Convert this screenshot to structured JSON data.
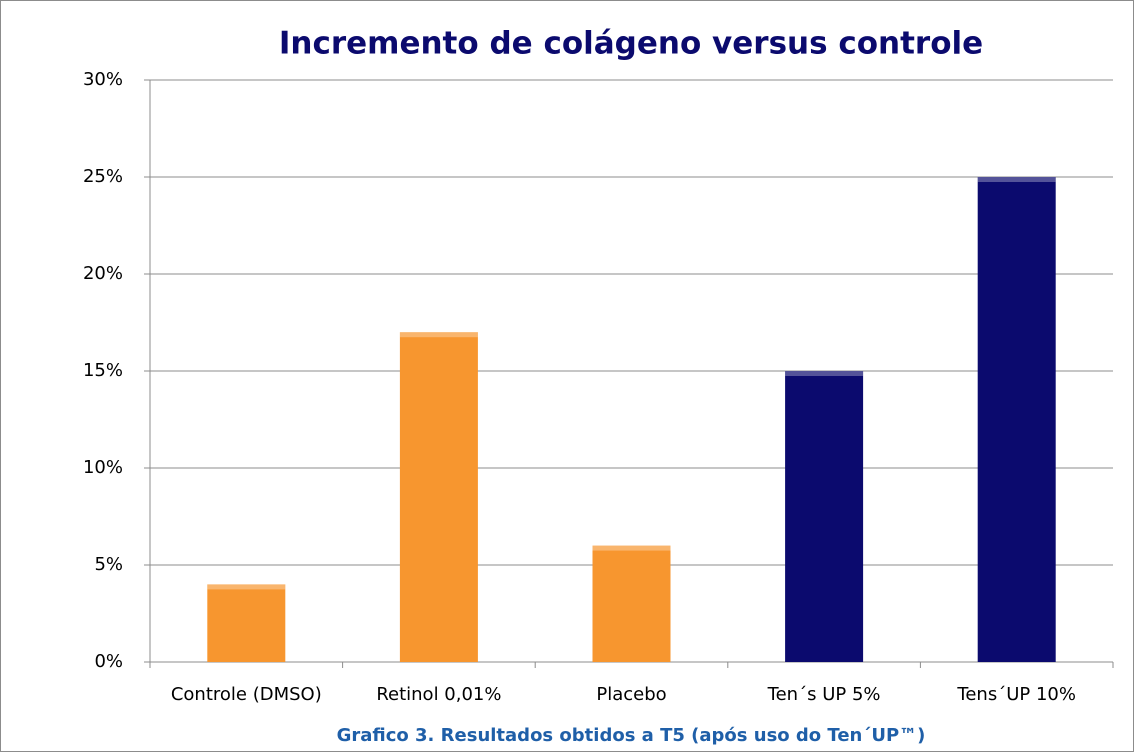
{
  "chart_data": {
    "type": "bar",
    "title": "Incremento de colágeno versus controle",
    "caption": "Grafico 3. Resultados obtidos a T5 (após uso do Ten´UP™)",
    "categories": [
      "Controle (DMSO)",
      "Retinol 0,01%",
      "Placebo",
      "Ten´s UP 5%",
      "Tens´UP 10%"
    ],
    "values": [
      4,
      17,
      6,
      15,
      25
    ],
    "colors": [
      "#f7962f",
      "#f7962f",
      "#f7962f",
      "#0b0a6e",
      "#0b0a6e"
    ],
    "ylim": [
      0,
      30
    ],
    "yticks": [
      {
        "value": 0,
        "label": "0%"
      },
      {
        "value": 5,
        "label": "5%"
      },
      {
        "value": 10,
        "label": "10%"
      },
      {
        "value": 15,
        "label": "15%"
      },
      {
        "value": 20,
        "label": "20%"
      },
      {
        "value": 25,
        "label": "25%"
      },
      {
        "value": 30,
        "label": "30%"
      }
    ],
    "grid": true
  }
}
